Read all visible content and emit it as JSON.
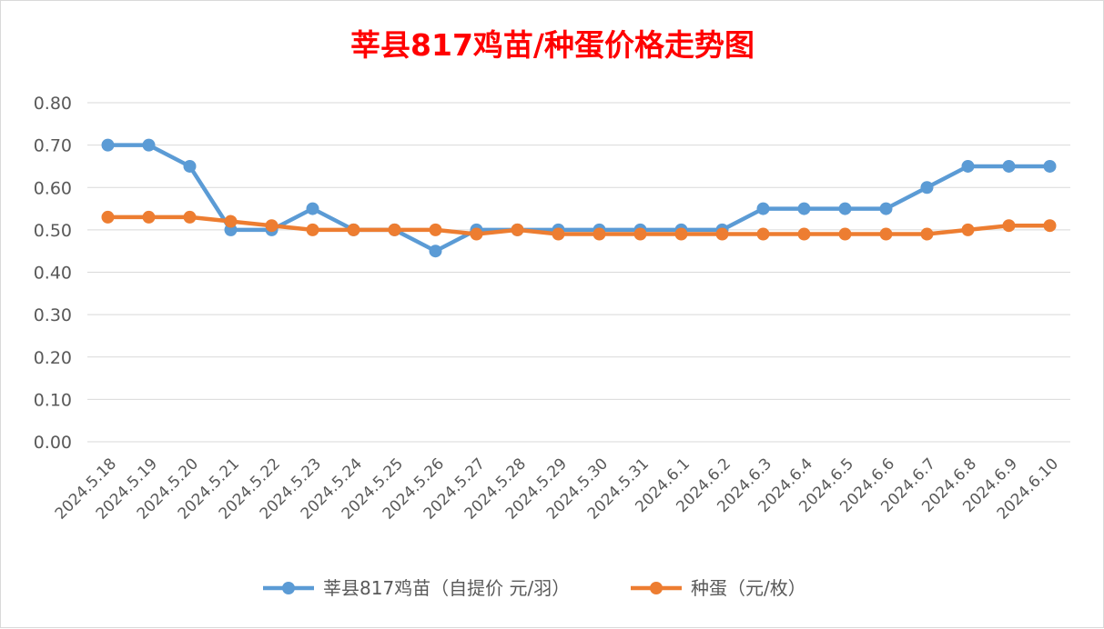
{
  "chart_data": {
    "type": "line",
    "title": "莘县817鸡苗/种蛋价格走势图",
    "title_color": "#ff0000",
    "xlabel": "",
    "ylabel": "",
    "ylim": [
      0,
      0.8
    ],
    "y_ticks": [
      "0.00",
      "0.10",
      "0.20",
      "0.30",
      "0.40",
      "0.50",
      "0.60",
      "0.70",
      "0.80"
    ],
    "y_tick_values": [
      0,
      0.1,
      0.2,
      0.3,
      0.4,
      0.5,
      0.6,
      0.7,
      0.8
    ],
    "grid": true,
    "legend_position": "bottom",
    "categories": [
      "2024.5.18",
      "2024.5.19",
      "2024.5.20",
      "2024.5.21",
      "2024.5.22",
      "2024.5.23",
      "2024.5.24",
      "2024.5.25",
      "2024.5.26",
      "2024.5.27",
      "2024.5.28",
      "2024.5.29",
      "2024.5.30",
      "2024.5.31",
      "2024.6.1",
      "2024.6.2",
      "2024.6.3",
      "2024.6.4",
      "2024.6.5",
      "2024.6.6",
      "2024.6.7",
      "2024.6.8",
      "2024.6.9",
      "2024.6.10"
    ],
    "series": [
      {
        "name": "莘县817鸡苗（自提价 元/羽）",
        "color": "#5b9bd5",
        "values": [
          0.7,
          0.7,
          0.65,
          0.5,
          0.5,
          0.55,
          0.5,
          0.5,
          0.45,
          0.5,
          0.5,
          0.5,
          0.5,
          0.5,
          0.5,
          0.5,
          0.55,
          0.55,
          0.55,
          0.55,
          0.6,
          0.65,
          0.65,
          0.65
        ]
      },
      {
        "name": "种蛋（元/枚）",
        "color": "#ed7d31",
        "values": [
          0.53,
          0.53,
          0.53,
          0.52,
          0.51,
          0.5,
          0.5,
          0.5,
          0.5,
          0.49,
          0.5,
          0.49,
          0.49,
          0.49,
          0.49,
          0.49,
          0.49,
          0.49,
          0.49,
          0.49,
          0.49,
          0.5,
          0.51,
          0.51
        ]
      }
    ]
  }
}
